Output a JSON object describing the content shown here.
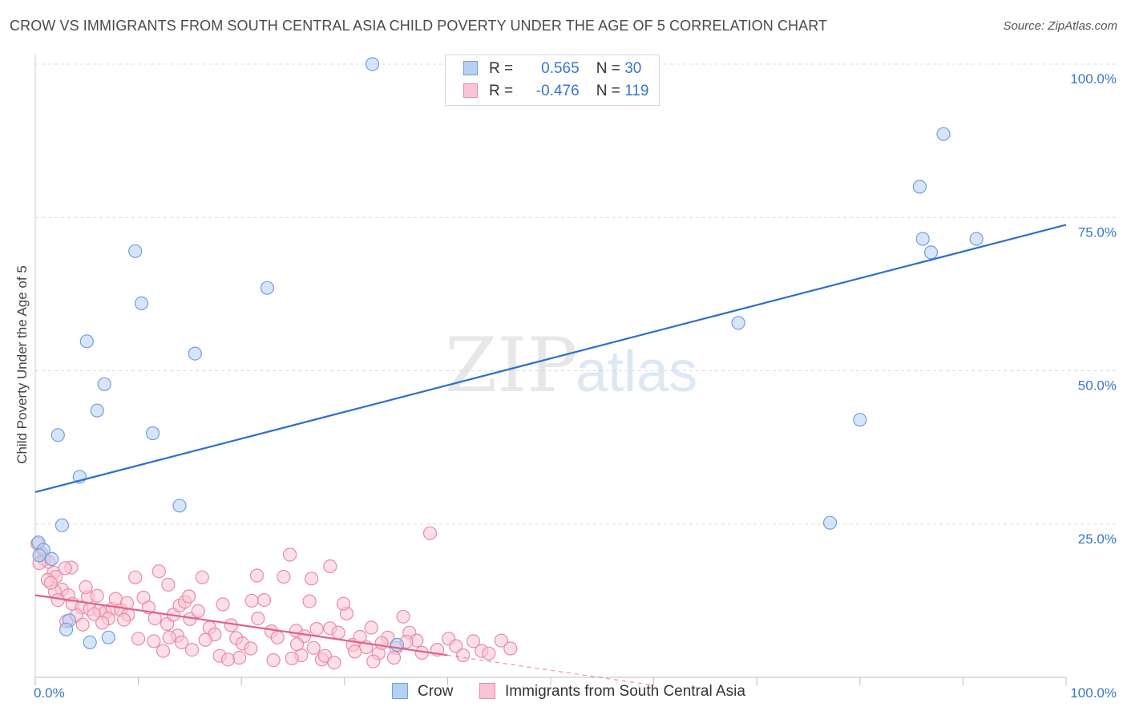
{
  "title": "CROW VS IMMIGRANTS FROM SOUTH CENTRAL ASIA CHILD POVERTY UNDER THE AGE OF 5 CORRELATION CHART",
  "source": "Source: ZipAtlas.com",
  "watermark": {
    "zip": "ZIP",
    "atlas": "atlas"
  },
  "legend": {
    "r_label": "R =",
    "n_label": "N =",
    "items": [
      {
        "r": "0.565",
        "n": "30",
        "fill": "#b6d0f2",
        "stroke": "#6f9fde"
      },
      {
        "r": "-0.476",
        "n": "119",
        "fill": "#f9c4d4",
        "stroke": "#e98aa8"
      }
    ]
  },
  "chart_data": {
    "type": "scatter",
    "title": "CROW VS IMMIGRANTS FROM SOUTH CENTRAL ASIA CHILD POVERTY UNDER THE AGE OF 5 CORRELATION CHART",
    "xlabel": "",
    "ylabel": "Child Poverty Under the Age of 5",
    "xlim": [
      0,
      100
    ],
    "ylim": [
      0,
      100
    ],
    "x_tick_labels": [
      "0.0%",
      "100.0%"
    ],
    "y_tick_labels": [
      "25.0%",
      "50.0%",
      "75.0%",
      "100.0%"
    ],
    "y_ticks": [
      25,
      50,
      75,
      100
    ],
    "grid": true,
    "series": [
      {
        "name": "Crow",
        "color": "#6f9fde",
        "fill": "#b6d0f2",
        "line_color": "#2f6fcc",
        "trend": {
          "x": [
            0,
            100
          ],
          "y": [
            30.2,
            73.8
          ]
        },
        "points": [
          [
            32.7,
            100
          ],
          [
            88.1,
            88.6
          ],
          [
            85.8,
            80
          ],
          [
            86.1,
            71.5
          ],
          [
            91.3,
            71.5
          ],
          [
            86.9,
            69.3
          ],
          [
            9.7,
            69.5
          ],
          [
            22.5,
            63.5
          ],
          [
            10.3,
            61
          ],
          [
            5.0,
            54.8
          ],
          [
            15.5,
            52.8
          ],
          [
            68.2,
            57.8
          ],
          [
            6.7,
            47.8
          ],
          [
            6.0,
            43.5
          ],
          [
            2.2,
            39.5
          ],
          [
            11.4,
            39.8
          ],
          [
            80.0,
            42.0
          ],
          [
            4.3,
            32.7
          ],
          [
            14.0,
            28.0
          ],
          [
            77.1,
            25.2
          ],
          [
            2.6,
            24.8
          ],
          [
            0.3,
            22.0
          ],
          [
            0.8,
            20.8
          ],
          [
            0.4,
            19.9
          ],
          [
            1.6,
            19.3
          ],
          [
            3.3,
            9.3
          ],
          [
            3.0,
            7.8
          ],
          [
            5.3,
            5.7
          ],
          [
            7.1,
            6.5
          ],
          [
            35.1,
            5.3
          ]
        ]
      },
      {
        "name": "Immigrants from South Central Asia",
        "color": "#e98aa8",
        "fill": "#f9c4d4",
        "line_color": "#e2608a",
        "trend": {
          "x": [
            0,
            40
          ],
          "y": [
            13.4,
            3.6
          ]
        },
        "trend_dashed": {
          "x": [
            40,
            60
          ],
          "y": [
            3.6,
            -1.3
          ]
        },
        "points": [
          [
            0.2,
            21.8
          ],
          [
            0.6,
            20.2
          ],
          [
            0.9,
            19.2
          ],
          [
            1.3,
            18.8
          ],
          [
            0.4,
            18.6
          ],
          [
            1.8,
            17.1
          ],
          [
            3.5,
            17.9
          ],
          [
            2.0,
            16.4
          ],
          [
            1.2,
            15.9
          ],
          [
            2.6,
            14.3
          ],
          [
            1.9,
            14.0
          ],
          [
            3.2,
            13.4
          ],
          [
            5.1,
            13.1
          ],
          [
            6.0,
            13.3
          ],
          [
            2.2,
            12.6
          ],
          [
            3.6,
            12.0
          ],
          [
            4.5,
            11.4
          ],
          [
            5.3,
            11.1
          ],
          [
            6.2,
            10.9
          ],
          [
            6.8,
            10.6
          ],
          [
            7.5,
            11.2
          ],
          [
            8.3,
            11.0
          ],
          [
            9.0,
            10.2
          ],
          [
            4.0,
            10.1
          ],
          [
            5.7,
            10.3
          ],
          [
            7.1,
            9.6
          ],
          [
            8.6,
            9.4
          ],
          [
            3.0,
            9.1
          ],
          [
            4.6,
            8.6
          ],
          [
            6.5,
            8.9
          ],
          [
            9.7,
            16.3
          ],
          [
            10.5,
            13.0
          ],
          [
            11.0,
            11.4
          ],
          [
            12.0,
            17.3
          ],
          [
            11.6,
            9.6
          ],
          [
            12.8,
            8.7
          ],
          [
            13.4,
            10.2
          ],
          [
            14.0,
            11.7
          ],
          [
            14.5,
            12.3
          ],
          [
            13.8,
            6.8
          ],
          [
            10.0,
            6.3
          ],
          [
            11.5,
            5.9
          ],
          [
            12.4,
            4.3
          ],
          [
            13.0,
            6.5
          ],
          [
            14.2,
            5.7
          ],
          [
            15.0,
            9.5
          ],
          [
            15.8,
            10.8
          ],
          [
            14.9,
            13.2
          ],
          [
            16.2,
            16.3
          ],
          [
            16.9,
            8.1
          ],
          [
            17.4,
            7.0
          ],
          [
            18.2,
            11.9
          ],
          [
            19.0,
            8.5
          ],
          [
            19.5,
            6.4
          ],
          [
            20.1,
            5.5
          ],
          [
            21.0,
            12.5
          ],
          [
            22.2,
            12.6
          ],
          [
            21.6,
            9.6
          ],
          [
            22.9,
            7.5
          ],
          [
            23.5,
            6.5
          ],
          [
            24.1,
            16.4
          ],
          [
            24.7,
            20.0
          ],
          [
            25.3,
            7.6
          ],
          [
            26.1,
            6.7
          ],
          [
            25.8,
            3.6
          ],
          [
            26.6,
            12.4
          ],
          [
            27.3,
            7.9
          ],
          [
            27.8,
            2.9
          ],
          [
            28.6,
            8.0
          ],
          [
            29.4,
            7.3
          ],
          [
            30.2,
            10.4
          ],
          [
            30.8,
            5.3
          ],
          [
            31.5,
            6.6
          ],
          [
            32.1,
            4.9
          ],
          [
            32.6,
            8.1
          ],
          [
            33.3,
            3.9
          ],
          [
            34.2,
            6.5
          ],
          [
            35.0,
            4.8
          ],
          [
            35.7,
            9.9
          ],
          [
            36.3,
            7.3
          ],
          [
            37.0,
            6.0
          ],
          [
            28.6,
            18.1
          ],
          [
            29.9,
            12.0
          ],
          [
            17.9,
            3.5
          ],
          [
            19.8,
            3.2
          ],
          [
            18.7,
            2.9
          ],
          [
            16.5,
            6.1
          ],
          [
            15.2,
            4.5
          ],
          [
            20.9,
            4.7
          ],
          [
            23.1,
            2.8
          ],
          [
            24.9,
            3.1
          ],
          [
            25.4,
            5.4
          ],
          [
            27.0,
            4.8
          ],
          [
            28.1,
            3.5
          ],
          [
            29.0,
            2.4
          ],
          [
            31.0,
            4.2
          ],
          [
            32.8,
            2.6
          ],
          [
            33.6,
            5.6
          ],
          [
            34.8,
            3.2
          ],
          [
            36.0,
            5.8
          ],
          [
            37.5,
            4.0
          ],
          [
            39.0,
            4.5
          ],
          [
            40.1,
            6.3
          ],
          [
            40.8,
            5.1
          ],
          [
            41.5,
            3.6
          ],
          [
            42.5,
            5.9
          ],
          [
            43.3,
            4.3
          ],
          [
            44.0,
            3.9
          ],
          [
            45.2,
            6.0
          ],
          [
            46.1,
            4.7
          ],
          [
            38.3,
            23.5
          ],
          [
            2.9,
            17.8
          ],
          [
            1.5,
            15.4
          ],
          [
            4.9,
            14.7
          ],
          [
            7.8,
            12.8
          ],
          [
            8.9,
            12.1
          ],
          [
            21.5,
            16.6
          ],
          [
            26.8,
            16.1
          ],
          [
            12.9,
            15.1
          ]
        ]
      }
    ]
  },
  "bottom_legend": [
    {
      "label": "Crow",
      "fill": "#b6d0f2",
      "stroke": "#6f9fde"
    },
    {
      "label": "Immigrants from South Central Asia",
      "fill": "#f9c4d4",
      "stroke": "#e98aa8"
    }
  ]
}
